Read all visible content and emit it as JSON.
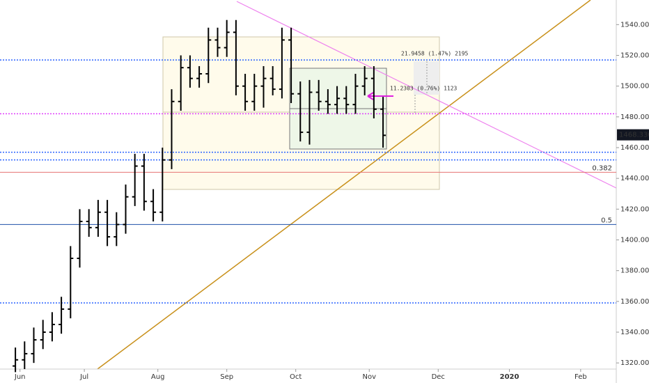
{
  "chart_data": {
    "type": "ohlc",
    "x": [
      0,
      4,
      8,
      12,
      16,
      20,
      24,
      28,
      32,
      36,
      40,
      44,
      48,
      52,
      56,
      60,
      64,
      68,
      72,
      76,
      80,
      84,
      88,
      92,
      96,
      100,
      104,
      108,
      112,
      116,
      120,
      124,
      128,
      132,
      136,
      140,
      144,
      148,
      152,
      156,
      160
    ],
    "open": [
      1318,
      1322,
      1326,
      1335,
      1340,
      1345,
      1355,
      1388,
      1412,
      1408,
      1418,
      1402,
      1410,
      1428,
      1448,
      1425,
      1418,
      1452,
      1490,
      1512,
      1505,
      1508,
      1530,
      1525,
      1535,
      1500,
      1490,
      1500,
      1505,
      1498,
      1530,
      1495,
      1470,
      1496,
      1490,
      1488,
      1492,
      1488,
      1500,
      1505,
      1485
    ],
    "high": [
      1330,
      1334,
      1343,
      1348,
      1353,
      1363,
      1396,
      1420,
      1420,
      1426,
      1426,
      1418,
      1436,
      1456,
      1456,
      1433,
      1460,
      1498,
      1520,
      1520,
      1513,
      1538,
      1538,
      1543,
      1543,
      1508,
      1508,
      1513,
      1513,
      1538,
      1538,
      1503,
      1504,
      1504,
      1498,
      1500,
      1500,
      1508,
      1513,
      1513,
      1493
    ],
    "low": [
      1314,
      1316,
      1320,
      1329,
      1334,
      1339,
      1349,
      1382,
      1402,
      1402,
      1396,
      1396,
      1404,
      1422,
      1419,
      1412,
      1412,
      1446,
      1484,
      1499,
      1499,
      1502,
      1519,
      1519,
      1494,
      1484,
      1484,
      1486,
      1494,
      1492,
      1489,
      1464,
      1462,
      1484,
      1482,
      1482,
      1482,
      1482,
      1494,
      1479,
      1460
    ],
    "close": [
      1322,
      1326,
      1335,
      1340,
      1345,
      1355,
      1388,
      1412,
      1408,
      1418,
      1402,
      1410,
      1428,
      1448,
      1425,
      1418,
      1452,
      1490,
      1512,
      1505,
      1508,
      1530,
      1525,
      1535,
      1500,
      1490,
      1500,
      1505,
      1498,
      1530,
      1495,
      1470,
      1496,
      1490,
      1488,
      1492,
      1488,
      1500,
      1505,
      1485,
      1468
    ],
    "color": "#000000",
    "xlim": [
      -6.7,
      261.5
    ],
    "xticks": [
      {
        "value": 2,
        "label": "Jun"
      },
      {
        "value": 30,
        "label": "Jul"
      },
      {
        "value": 62,
        "label": "Aug"
      },
      {
        "value": 92,
        "label": "Sep"
      },
      {
        "value": 122,
        "label": "Oct"
      },
      {
        "value": 154,
        "label": "Nov"
      },
      {
        "value": 184,
        "label": "Dec"
      },
      {
        "value": 215,
        "label": "2020"
      },
      {
        "value": 246,
        "label": "Feb"
      }
    ],
    "ylim": [
      1316,
      1556
    ],
    "yticks": [
      {
        "value": 1320,
        "label": "1320.0000"
      },
      {
        "value": 1340,
        "label": "1340.0000"
      },
      {
        "value": 1360,
        "label": "1360.0000"
      },
      {
        "value": 1380,
        "label": "1380.0000"
      },
      {
        "value": 1400,
        "label": "1400.0000"
      },
      {
        "value": 1420,
        "label": "1420.0000"
      },
      {
        "value": 1440,
        "label": "1440.0000"
      },
      {
        "value": 1460,
        "label": "1460.0000"
      },
      {
        "value": 1480,
        "label": "1480.0000"
      },
      {
        "value": 1500,
        "label": "1500.0000"
      },
      {
        "value": 1520,
        "label": "1520.0000"
      },
      {
        "value": 1540,
        "label": "1540.0000"
      }
    ],
    "last_price": {
      "value": 1468.33,
      "label": "1468.3300"
    },
    "levels": [
      {
        "value": 1517,
        "color": "#2962ff",
        "style": "dotted"
      },
      {
        "value": 1482,
        "color": "#e040fb",
        "style": "dotted"
      },
      {
        "value": 1457,
        "color": "#2962ff",
        "style": "dotted"
      },
      {
        "value": 1452,
        "color": "#2962ff",
        "style": "dotted"
      },
      {
        "value": 1444,
        "color": "#e57373",
        "style": "solid",
        "label": "0.382"
      },
      {
        "value": 1410,
        "color": "#1e4fa8",
        "style": "solid",
        "label": "0.5"
      },
      {
        "value": 1359,
        "color": "#2962ff",
        "style": "dotted"
      }
    ],
    "annotations": [
      "21.9458 (1.47%) 2195",
      "11.2303 (0.76%) 1123"
    ]
  }
}
